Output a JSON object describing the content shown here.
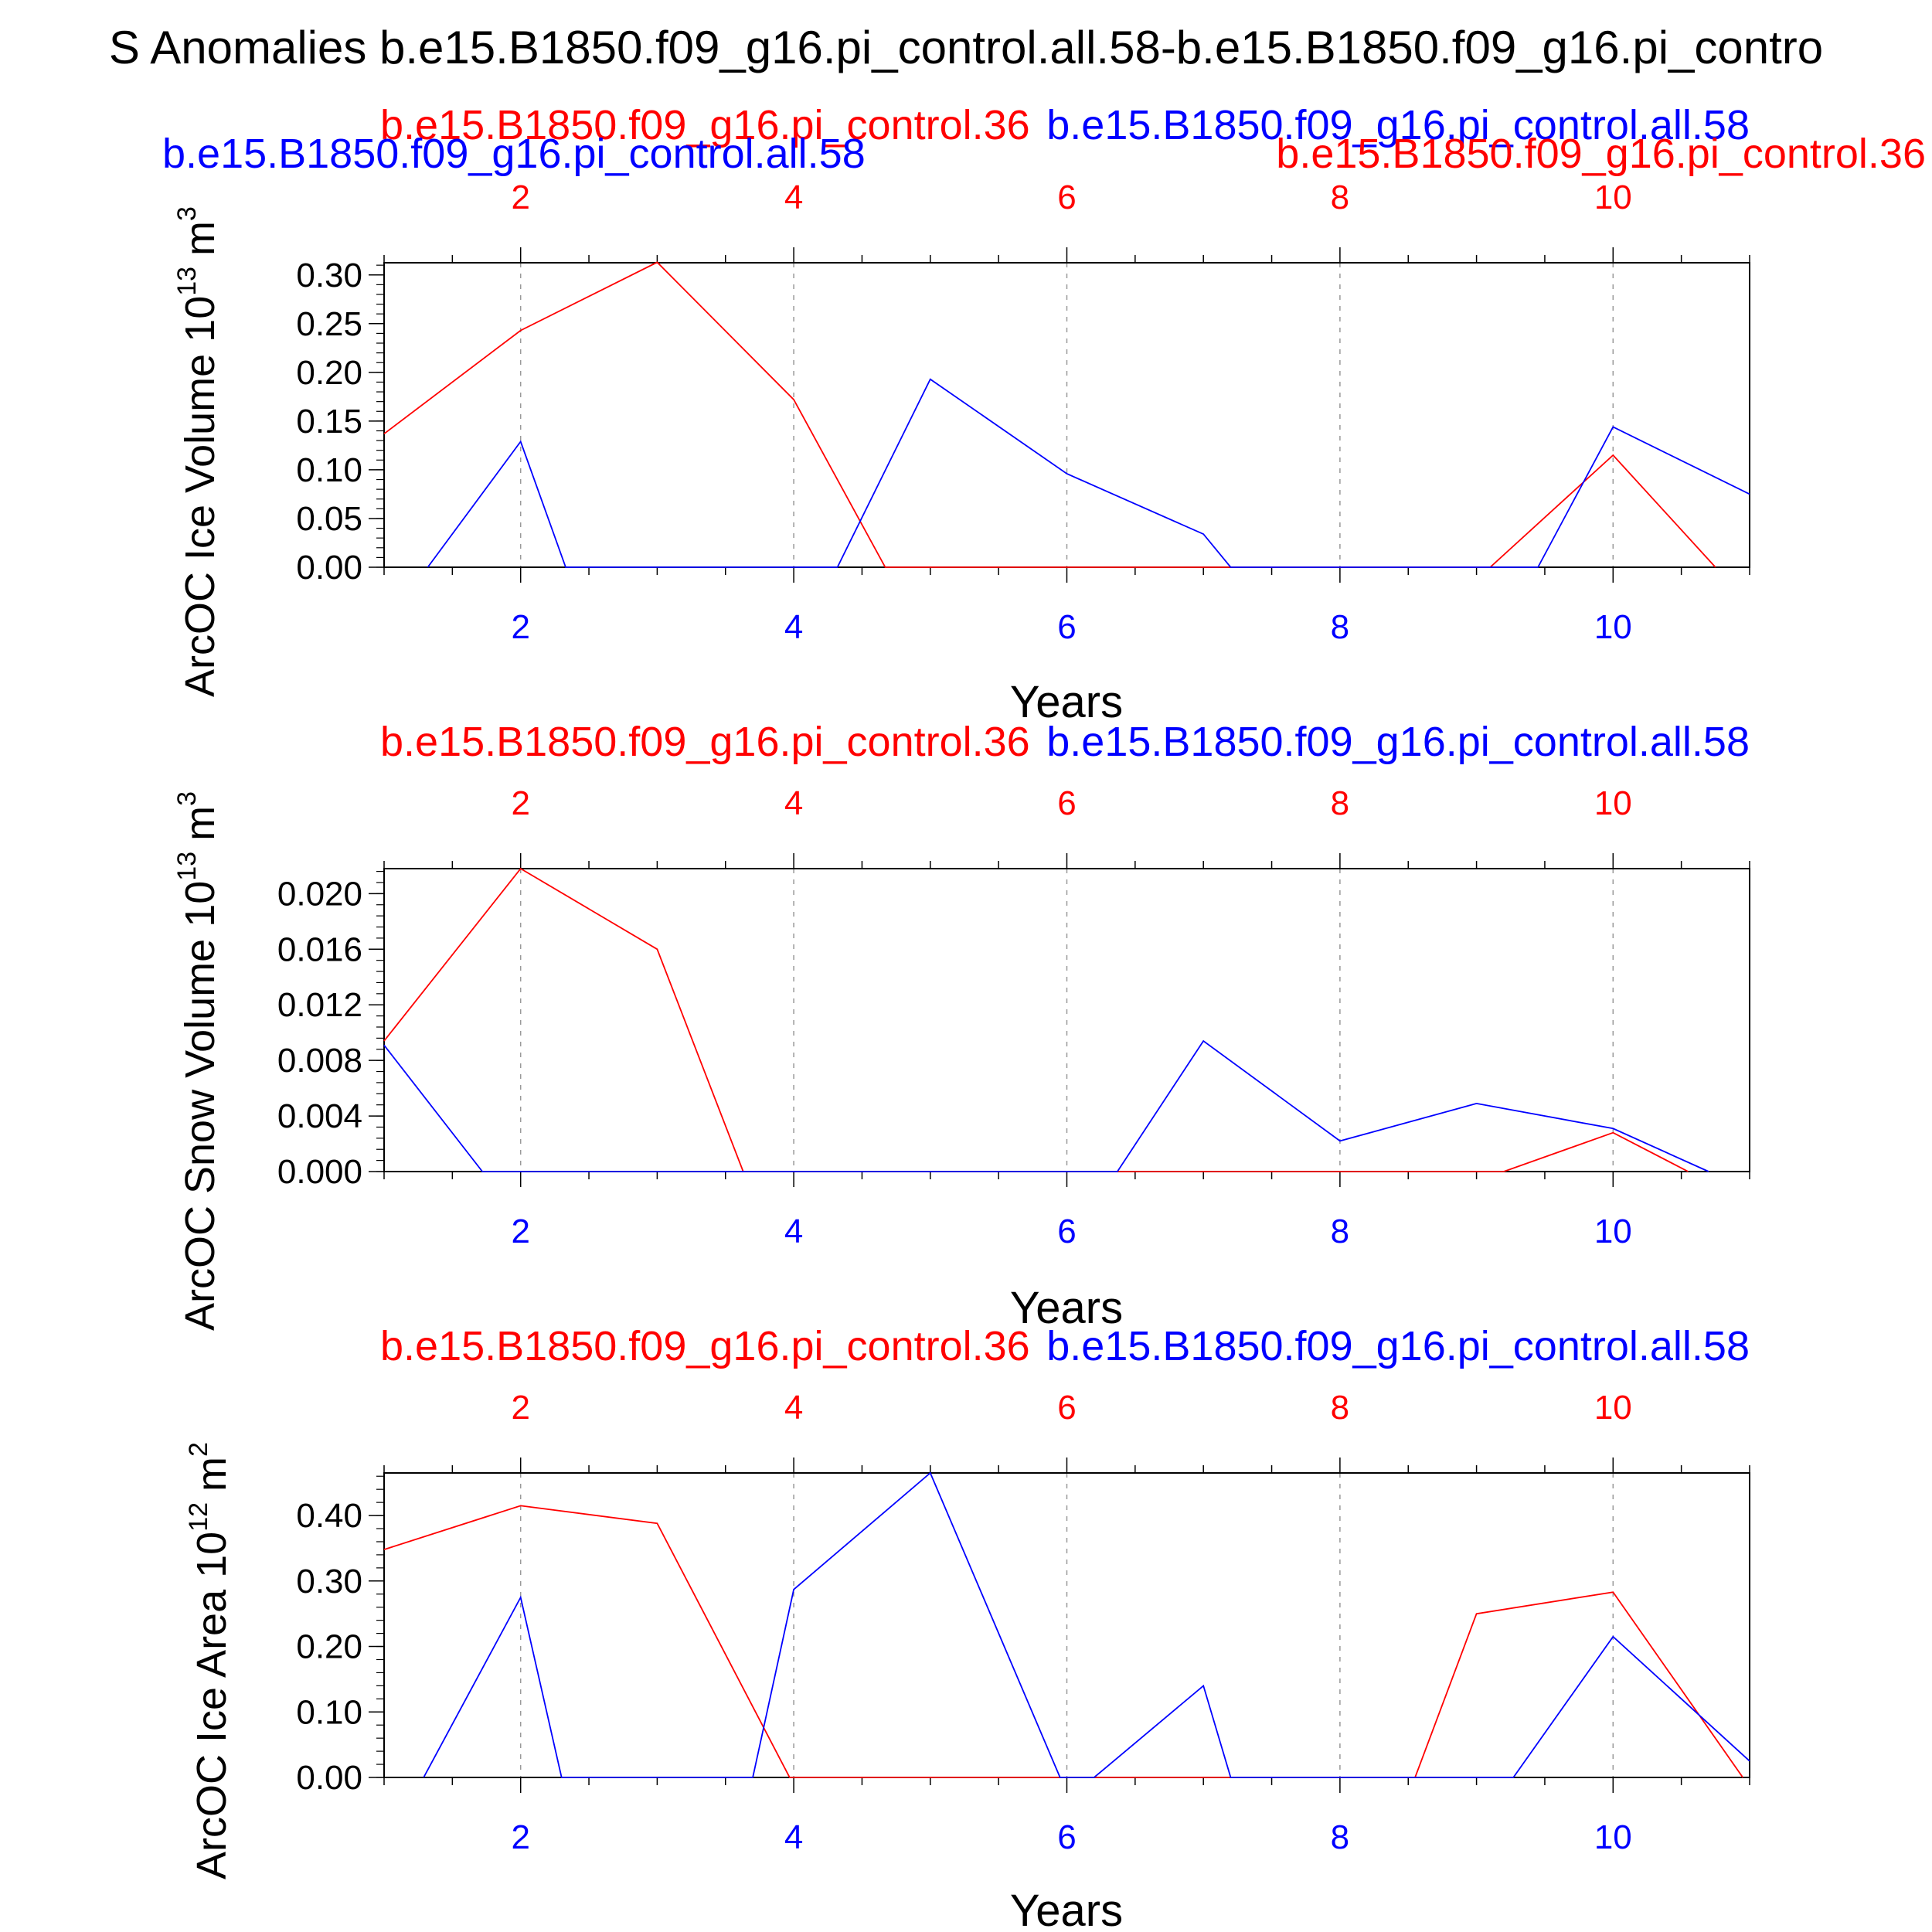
{
  "figure_title": "S Anomalies b.e15.B1850.f09_g16.pi_control.all.58-b.e15.B1850.f09_g16.pi_contro",
  "colors": {
    "red": "#ff0000",
    "blue": "#0000ff",
    "axis": "#000000",
    "grid": "#999999"
  },
  "chart_data": [
    {
      "type": "line",
      "title_left": "b.e15.B1850.f09_g16.pi_control.36",
      "title_right": "b.e15.B1850.f09_g16.pi_control.all.58",
      "extra_labels": {
        "left_blue": "b.e15.B1850.f09_g16.pi_control.all.58",
        "right_red": "b.e15.B1850.f09_g16.pi_control.36"
      },
      "ylabel_main": "ArcOC Ice Volume 10",
      "ylabel_exp": "13",
      "ylabel_unit": "m",
      "ylabel_unit_exp": "3",
      "xlabel": "Years",
      "xlim": [
        1,
        11
      ],
      "ylim": [
        0,
        0.3125
      ],
      "xticks": [
        2,
        4,
        6,
        8,
        10
      ],
      "yticks": [
        0.0,
        0.05,
        0.1,
        0.15,
        0.2,
        0.25,
        0.3
      ],
      "ytick_labels": [
        "0.00",
        "0.05",
        "0.10",
        "0.15",
        "0.20",
        "0.25",
        "0.30"
      ],
      "yminor_step": 0.01,
      "series": [
        {
          "color": "red",
          "x": [
            1,
            2,
            3,
            4,
            4.67,
            9.1,
            10,
            10.75
          ],
          "y": [
            0.137,
            0.243,
            0.313,
            0.172,
            0.0,
            0.0,
            0.115,
            0.0
          ]
        },
        {
          "color": "blue",
          "x": [
            1.32,
            2,
            2.33,
            4.32,
            5,
            6,
            7,
            7.2,
            9.45,
            10,
            11
          ],
          "y": [
            0.0,
            0.129,
            0.0,
            0.0,
            0.193,
            0.096,
            0.034,
            0.0,
            0.0,
            0.144,
            0.075
          ]
        }
      ]
    },
    {
      "type": "line",
      "title_left": "b.e15.B1850.f09_g16.pi_control.36",
      "title_right": "b.e15.B1850.f09_g16.pi_control.all.58",
      "ylabel_main": "ArcOC Snow Volume 10",
      "ylabel_exp": "13",
      "ylabel_unit": "m",
      "ylabel_unit_exp": "3",
      "xlabel": "Years",
      "xlim": [
        1,
        11
      ],
      "ylim": [
        0,
        0.0218
      ],
      "xticks": [
        2,
        4,
        6,
        8,
        10
      ],
      "yticks": [
        0.0,
        0.004,
        0.008,
        0.012,
        0.016,
        0.02
      ],
      "ytick_labels": [
        "0.000",
        "0.004",
        "0.008",
        "0.012",
        "0.016",
        "0.020"
      ],
      "yminor_step": 0.0008,
      "series": [
        {
          "color": "red",
          "x": [
            1,
            2,
            3,
            3.63,
            9.2,
            10,
            10.55
          ],
          "y": [
            0.0094,
            0.0218,
            0.016,
            0.0,
            0.0,
            0.0028,
            0.0
          ]
        },
        {
          "color": "blue",
          "x": [
            1,
            1.72,
            6.37,
            7,
            8,
            9,
            10,
            10.7
          ],
          "y": [
            0.0091,
            0.0,
            0.0,
            0.0094,
            0.0022,
            0.0049,
            0.0031,
            0.0
          ]
        }
      ]
    },
    {
      "type": "line",
      "title_left": "b.e15.B1850.f09_g16.pi_control.36",
      "title_right": "b.e15.B1850.f09_g16.pi_control.all.58",
      "ylabel_main": "ArcOC Ice Area 10",
      "ylabel_exp": "12",
      "ylabel_unit": "m",
      "ylabel_unit_exp": "2",
      "xlabel": "Years",
      "xlim": [
        1,
        11
      ],
      "ylim": [
        0,
        0.465
      ],
      "xticks": [
        2,
        4,
        6,
        8,
        10
      ],
      "yticks": [
        0.0,
        0.1,
        0.2,
        0.3,
        0.4
      ],
      "ytick_labels": [
        "0.00",
        "0.10",
        "0.20",
        "0.30",
        "0.40"
      ],
      "yminor_step": 0.02,
      "series": [
        {
          "color": "red",
          "x": [
            1,
            2,
            3,
            3.97,
            8.55,
            9,
            10,
            10.95
          ],
          "y": [
            0.348,
            0.415,
            0.388,
            0.0,
            0.0,
            0.25,
            0.283,
            0.0
          ]
        },
        {
          "color": "blue",
          "x": [
            1.29,
            2,
            2.3,
            3.7,
            4,
            5,
            5.95,
            6.2,
            7,
            7.2,
            9.27,
            10,
            11
          ],
          "y": [
            0.0,
            0.275,
            0.0,
            0.0,
            0.287,
            0.465,
            0.0,
            0.0,
            0.14,
            0.0,
            0.0,
            0.215,
            0.025
          ]
        }
      ]
    }
  ]
}
